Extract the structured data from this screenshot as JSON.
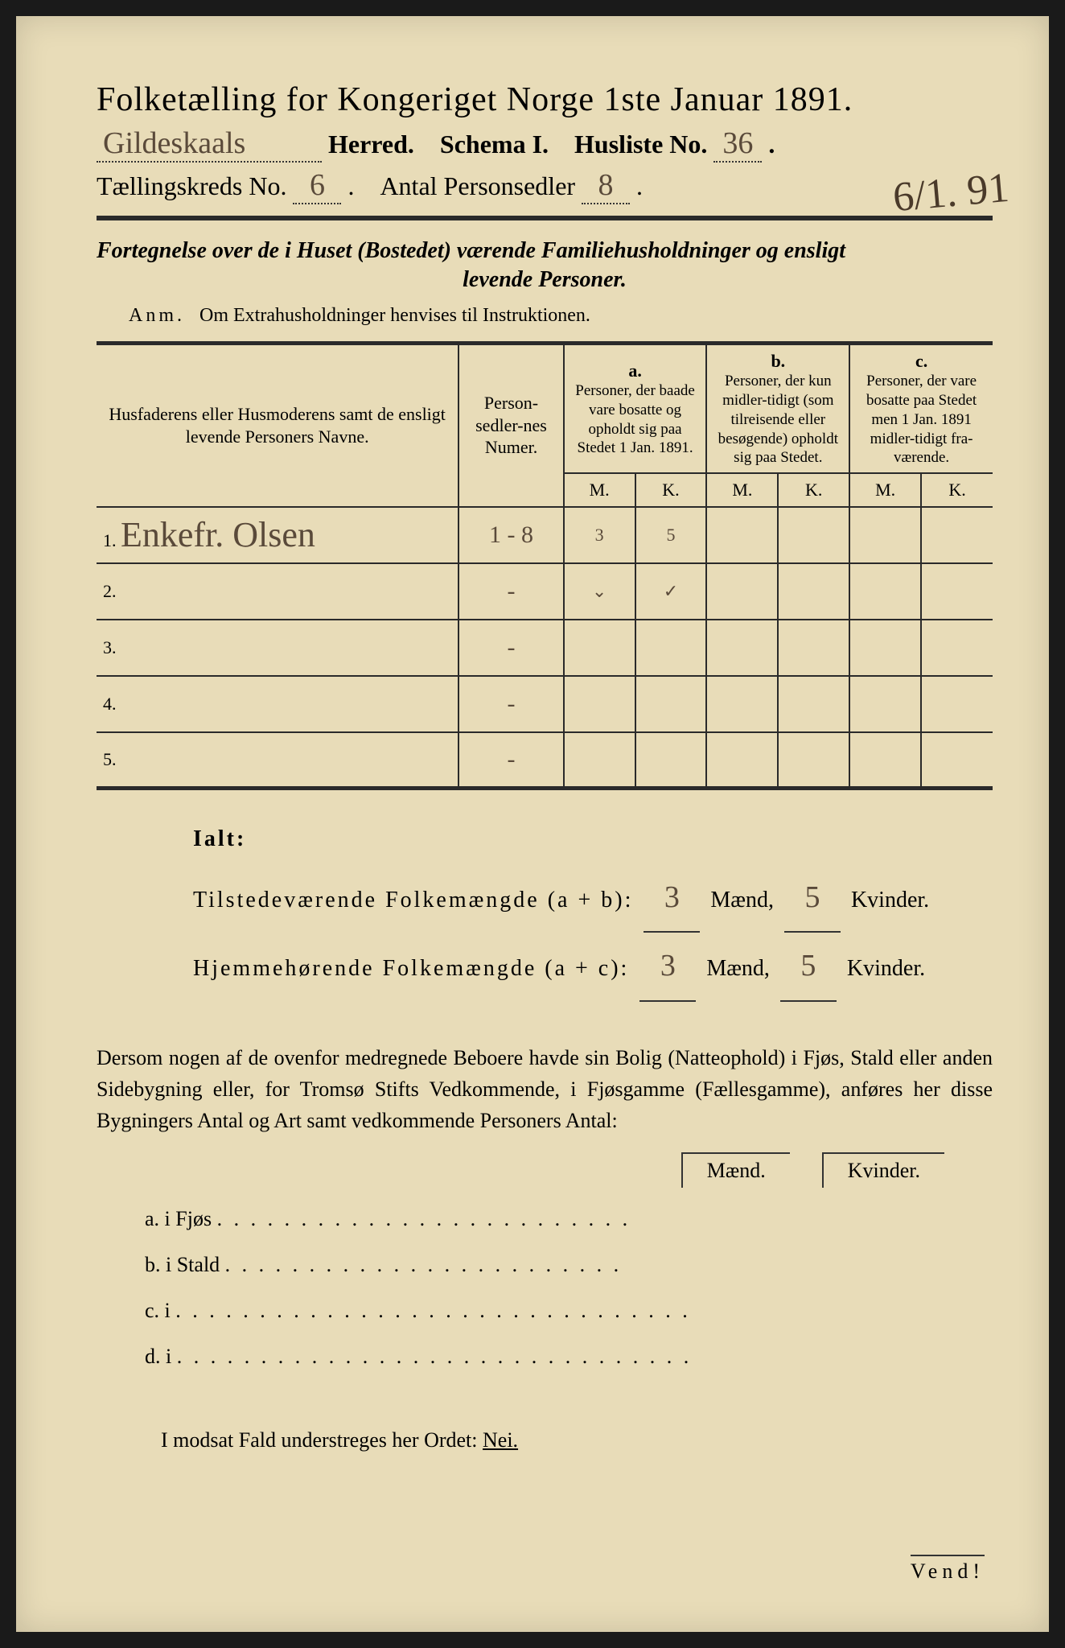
{
  "title": "Folketælling for Kongeriget Norge 1ste Januar 1891.",
  "herred_value": "Gildeskaals",
  "herred_label": "Herred.",
  "schema_label": "Schema I.",
  "husliste_label": "Husliste No.",
  "husliste_value": "36",
  "kreds_label": "Tællingskreds No.",
  "kreds_value": "6",
  "antal_label": "Antal Personsedler",
  "antal_value": "8",
  "date_annotation": "6/1. 91",
  "subtitle_line1": "Fortegnelse over de i Huset (Bostedet) værende Familiehusholdninger og ensligt",
  "subtitle_line2": "levende Personer.",
  "anm_prefix": "Anm.",
  "anm_text": "Om Extrahusholdninger henvises til Instruktionen.",
  "col_headers": {
    "name": "Husfaderens eller Husmoderens samt de ensligt levende Personers Navne.",
    "num": "Person-sedler-nes Numer.",
    "a_label": "a.",
    "a_text": "Personer, der baade vare bosatte og opholdt sig paa Stedet 1 Jan. 1891.",
    "b_label": "b.",
    "b_text": "Personer, der kun midler-tidigt (som tilreisende eller besøgende) opholdt sig paa Stedet.",
    "c_label": "c.",
    "c_text": "Personer, der vare bosatte paa Stedet men 1 Jan. 1891 midler-tidigt fra-værende.",
    "m": "M.",
    "k": "K."
  },
  "rows": [
    {
      "n": "1.",
      "name": "Enkefr. Olsen",
      "num": "1 - 8",
      "am": "3",
      "ak": "5",
      "bm": "",
      "bk": "",
      "cm": "",
      "ck": ""
    },
    {
      "n": "2.",
      "name": "",
      "num": "-",
      "am": "",
      "ak": "",
      "bm": "",
      "bk": "",
      "cm": "",
      "ck": ""
    },
    {
      "n": "3.",
      "name": "",
      "num": "-",
      "am": "",
      "ak": "",
      "bm": "",
      "bk": "",
      "cm": "",
      "ck": ""
    },
    {
      "n": "4.",
      "name": "",
      "num": "-",
      "am": "",
      "ak": "",
      "bm": "",
      "bk": "",
      "cm": "",
      "ck": ""
    },
    {
      "n": "5.",
      "name": "",
      "num": "-",
      "am": "",
      "ak": "",
      "bm": "",
      "bk": "",
      "cm": "",
      "ck": ""
    }
  ],
  "tick_row2": {
    "am": "⌄",
    "ak": "✓"
  },
  "ialt_label": "Ialt:",
  "tilstede_label": "Tilstedeværende Folkemængde (a + b):",
  "hjemme_label": "Hjemmehørende Folkemængde (a + c):",
  "tilstede_m": "3",
  "tilstede_k": "5",
  "hjemme_m": "3",
  "hjemme_k": "5",
  "maend": "Mænd,",
  "kvinder": "Kvinder.",
  "para_text": "Dersom nogen af de ovenfor medregnede Beboere havde sin Bolig (Natteophold) i Fjøs, Stald eller anden Sidebygning eller, for Tromsø Stifts Vedkommende, i Fjøsgamme (Fællesgamme), anføres her disse Bygningers Antal og Art samt vedkommende Personers Antal:",
  "mk_maend": "Mænd.",
  "mk_kvinder": "Kvinder.",
  "abcd": {
    "a": "a.  i      Fjøs",
    "b": "b.  i      Stald",
    "c": "c.  i",
    "d": "d.  i"
  },
  "nei_text": "I modsat Fald understreges her Ordet:",
  "nei_word": "Nei.",
  "vend": "Vend!",
  "colors": {
    "paper": "#e8dcb8",
    "ink": "#2a2a2a",
    "handwriting": "#5a4a3a"
  }
}
